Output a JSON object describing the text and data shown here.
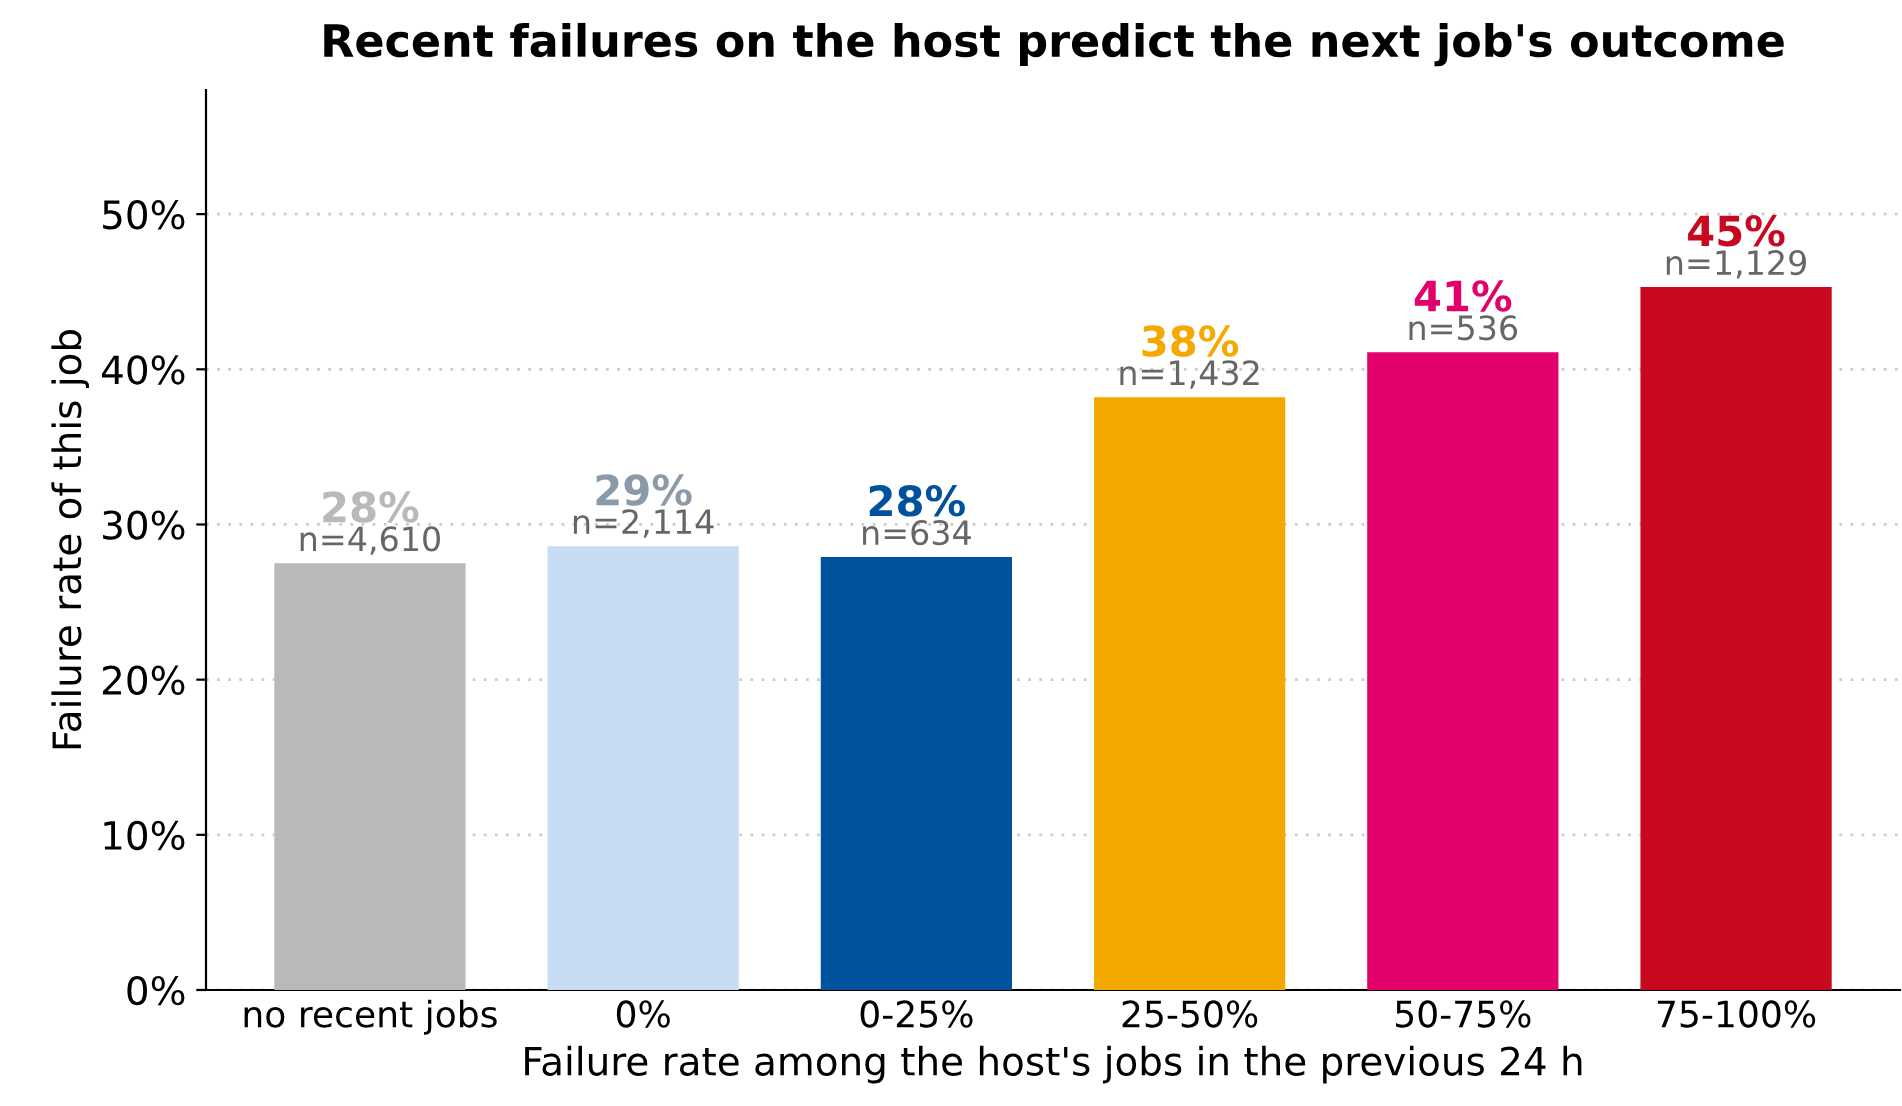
{
  "chart_data": {
    "type": "bar",
    "title": "Recent failures on the host predict the next job's outcome",
    "xlabel": "Failure rate among the host's jobs in the previous 24 h",
    "ylabel": "Failure rate of this job",
    "categories": [
      "no recent jobs",
      "0%",
      "0-25%",
      "25-50%",
      "50-75%",
      "75-100%"
    ],
    "values": [
      27.5,
      28.6,
      27.9,
      38.2,
      41.1,
      45.3
    ],
    "colors": [
      "#b9b9b9",
      "#c6dcf2",
      "#00529f",
      "#f5a800",
      "#e2006a",
      "#c8081e"
    ],
    "value_labels": [
      "28%",
      "29%",
      "28%",
      "38%",
      "41%",
      "45%"
    ],
    "annotations": [
      {
        "text": "n=4,610",
        "x": "no recent jobs",
        "y": 27.5
      },
      {
        "text": "n=2,114",
        "x": "0%",
        "y": 28.6
      },
      {
        "text": "n=634",
        "x": "0-25%",
        "y": 27.9
      },
      {
        "text": "n=1,432",
        "x": "25-50%",
        "y": 38.2
      },
      {
        "text": "n=536",
        "x": "50-75%",
        "y": 41.1
      },
      {
        "text": "n=1,129",
        "x": "75-100%",
        "y": 45.3
      }
    ],
    "ylim": [
      0,
      58
    ],
    "yticks": [
      {
        "value": 0,
        "label": "0%"
      },
      {
        "value": 10,
        "label": "10%"
      },
      {
        "value": 20,
        "label": "20%"
      },
      {
        "value": 30,
        "label": "30%"
      },
      {
        "value": 40,
        "label": "40%"
      },
      {
        "value": 50,
        "label": "50%"
      }
    ],
    "grid": "y",
    "legend": false
  }
}
